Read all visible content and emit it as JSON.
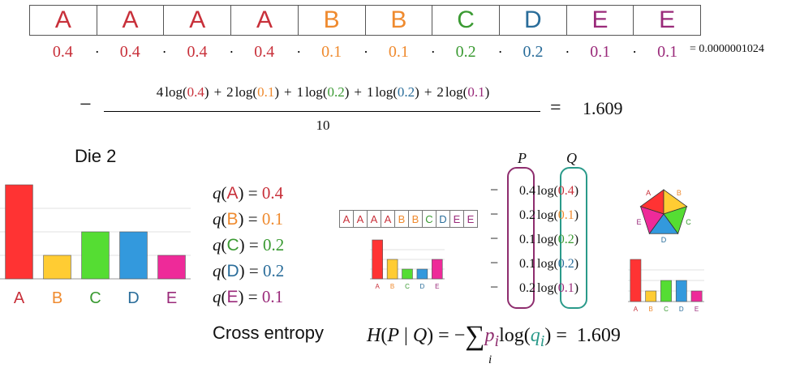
{
  "colors": {
    "A": "#c8303a",
    "B": "#ef8a2e",
    "C": "#3a9a32",
    "D": "#2a6d9a",
    "E": "#9a2a7a",
    "bar_A": "#ff3333",
    "bar_B": "#ffcc33",
    "bar_C": "#55dd33",
    "bar_D": "#3399dd",
    "bar_E": "#ee2a99",
    "P_border": "#8e2d6e",
    "Q_border": "#2a9a8a"
  },
  "sequence": [
    {
      "letter": "A",
      "prob": "0.4"
    },
    {
      "letter": "A",
      "prob": "0.4"
    },
    {
      "letter": "A",
      "prob": "0.4"
    },
    {
      "letter": "A",
      "prob": "0.4"
    },
    {
      "letter": "B",
      "prob": "0.1"
    },
    {
      "letter": "B",
      "prob": "0.1"
    },
    {
      "letter": "C",
      "prob": "0.2"
    },
    {
      "letter": "D",
      "prob": "0.2"
    },
    {
      "letter": "E",
      "prob": "0.1"
    },
    {
      "letter": "E",
      "prob": "0.1"
    }
  ],
  "dot": "·",
  "product_result": "= 0.0000001024",
  "formula": {
    "minus": "−",
    "numerator_terms": [
      {
        "coef": "4",
        "prob": "0.4",
        "letter": "A"
      },
      {
        "coef": "2",
        "prob": "0.1",
        "letter": "B"
      },
      {
        "coef": "1",
        "prob": "0.2",
        "letter": "C"
      },
      {
        "coef": "1",
        "prob": "0.2",
        "letter": "D"
      },
      {
        "coef": "2",
        "prob": "0.1",
        "letter": "E"
      }
    ],
    "log": "log",
    "plus": "+",
    "denominator": "10",
    "equals": "=",
    "result": "1.609"
  },
  "die_title": "Die 2",
  "q_list": [
    {
      "letter": "A",
      "value": "0.4"
    },
    {
      "letter": "B",
      "value": "0.1"
    },
    {
      "letter": "C",
      "value": "0.2"
    },
    {
      "letter": "D",
      "value": "0.2"
    },
    {
      "letter": "E",
      "value": "0.1"
    }
  ],
  "q_symbol": "q",
  "chart_data": {
    "type": "bar",
    "categories": [
      "A",
      "B",
      "C",
      "D",
      "E"
    ],
    "values": [
      0.4,
      0.1,
      0.2,
      0.2,
      0.1
    ],
    "ylim": [
      0,
      0.4
    ]
  },
  "small_chart_data": {
    "type": "bar",
    "categories": [
      "A",
      "B",
      "C",
      "D",
      "E"
    ],
    "values": [
      0.4,
      0.2,
      0.1,
      0.1,
      0.2
    ],
    "ylim": [
      0,
      0.4
    ]
  },
  "small_chart2_data": {
    "type": "bar",
    "categories": [
      "A",
      "B",
      "C",
      "D",
      "E"
    ],
    "values": [
      0.4,
      0.1,
      0.2,
      0.2,
      0.1
    ],
    "ylim": [
      0,
      0.4
    ]
  },
  "small_sequence": [
    "A",
    "A",
    "A",
    "A",
    "B",
    "B",
    "C",
    "D",
    "E",
    "E"
  ],
  "pq": {
    "P_label": "P",
    "Q_label": "Q",
    "rows": [
      {
        "p": "0.4",
        "q": "0.4",
        "letter": "A"
      },
      {
        "p": "0.2",
        "q": "0.1",
        "letter": "B"
      },
      {
        "p": "0.1",
        "q": "0.2",
        "letter": "C"
      },
      {
        "p": "0.1",
        "q": "0.2",
        "letter": "D"
      },
      {
        "p": "0.2",
        "q": "0.1",
        "letter": "E"
      }
    ]
  },
  "pentagon_labels": [
    "A",
    "B",
    "C",
    "D",
    "E"
  ],
  "cross_entropy": {
    "label": "Cross entropy",
    "H": "H",
    "P": "P",
    "bar": "|",
    "Q": "Q",
    "eq": "=",
    "minus": "−",
    "sum": "∑",
    "p": "p",
    "i": "i",
    "log": "log",
    "q": "q",
    "result": "1.609"
  }
}
